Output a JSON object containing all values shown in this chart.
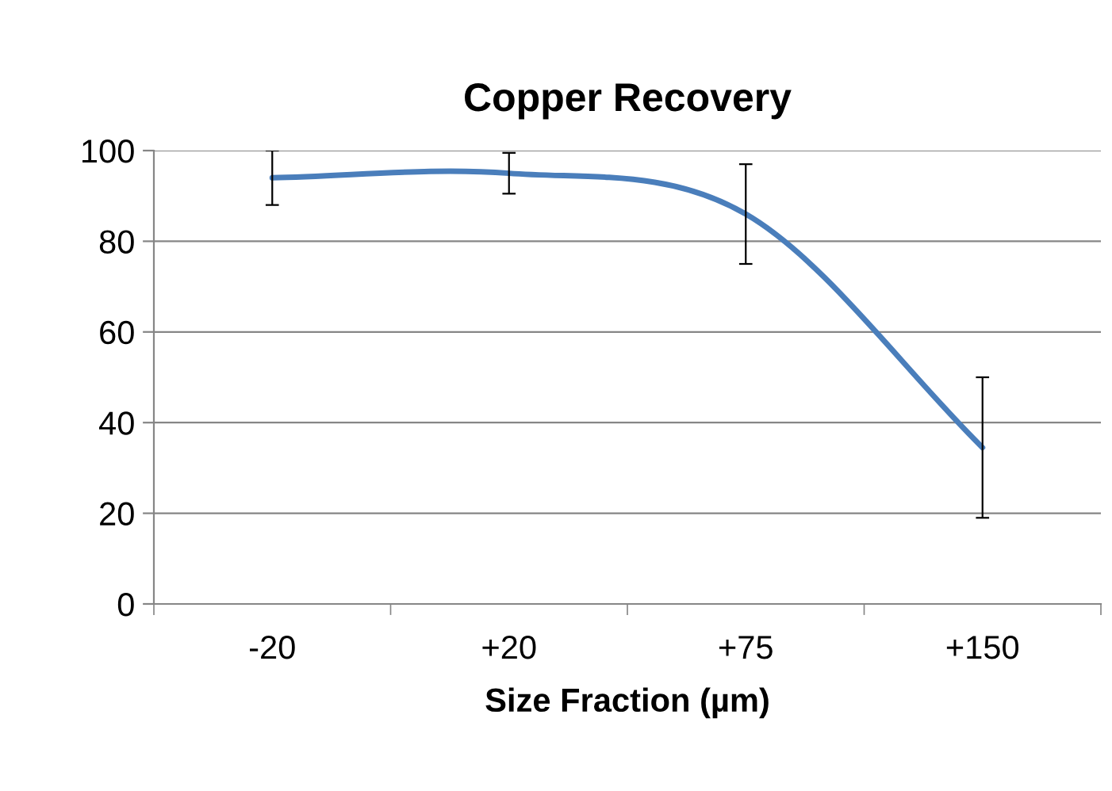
{
  "chart_data": {
    "type": "line",
    "title": "Copper Recovery",
    "xlabel": "Size Fraction (µm)",
    "categories": [
      "-20",
      "+20",
      "+75",
      "+150"
    ],
    "series": [
      {
        "color": "#4a7ebb",
        "values": [
          94,
          95,
          86,
          34.5
        ],
        "errors": [
          6,
          4.5,
          11,
          15.5
        ]
      }
    ],
    "ylim": [
      0,
      100
    ],
    "yticks": [
      0,
      20,
      40,
      60,
      80,
      100
    ],
    "grid": "y",
    "legend": false,
    "marker": "none",
    "line_style": "solid"
  }
}
